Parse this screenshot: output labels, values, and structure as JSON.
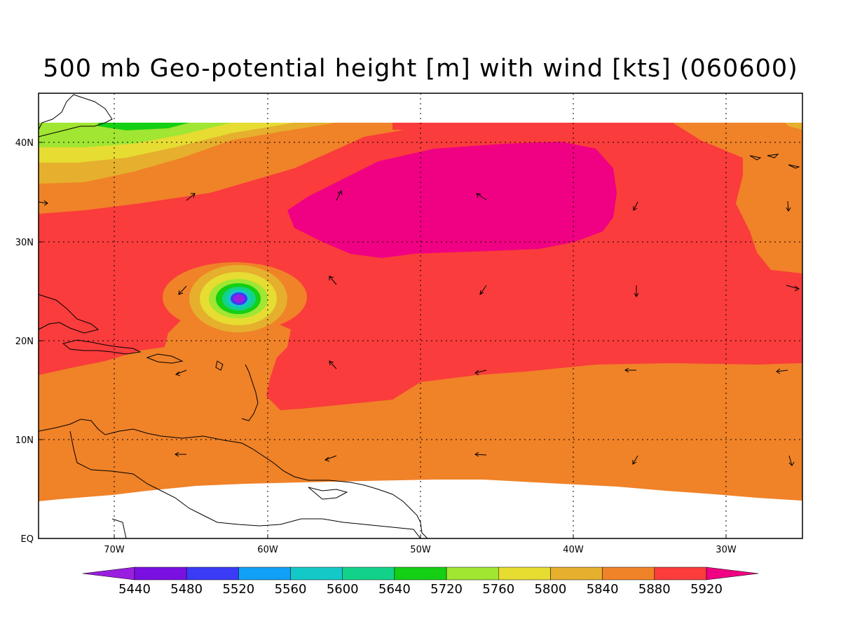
{
  "title": "500 mb Geo-potential height [m] with wind [kts] (060600)",
  "map": {
    "lat_labels": [
      "40N",
      "30N",
      "20N",
      "10N",
      "EQ"
    ],
    "lon_labels": [
      "70W",
      "60W",
      "50W",
      "40W",
      "30W"
    ]
  },
  "colorbar": {
    "labels": [
      "5440",
      "5480",
      "5520",
      "5560",
      "5600",
      "5640",
      "5720",
      "5760",
      "5800",
      "5840",
      "5880",
      "5920"
    ],
    "colors": [
      "#9a1ee0",
      "#7a10e0",
      "#3a3cf5",
      "#10a0f5",
      "#14c8c8",
      "#12d28a",
      "#14cf14",
      "#a0e632",
      "#e6dc32",
      "#e6af2d",
      "#f08228",
      "#fa3c3c",
      "#f00082"
    ]
  }
}
